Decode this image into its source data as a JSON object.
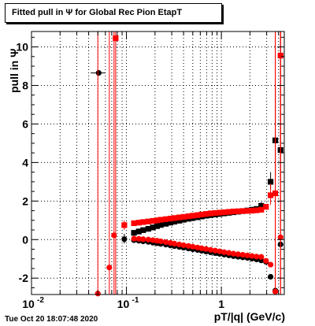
{
  "title": "Fitted pull in  Ψ  for Global Rec Pion EtapT",
  "timestamp": "Tue Oct 20 18:07:48 2020",
  "chart_data": {
    "type": "scatter",
    "title": "Fitted pull in  Ψ  for Global Rec Pion EtapT",
    "xlabel": "pT/|q| (GeV/c)",
    "ylabel": "pull in  Ψ",
    "x_scale": "log",
    "xlim": [
      0.01,
      4.6
    ],
    "ylim": [
      -2.85,
      10.8
    ],
    "grid": true,
    "x_ticks": [
      {
        "label": "10",
        "exp": "-2",
        "value": 0.01
      },
      {
        "label": "10",
        "exp": "-1",
        "value": 0.1
      },
      {
        "label": "1",
        "exp": "",
        "value": 1
      }
    ],
    "y_ticks": [
      -2,
      0,
      2,
      4,
      6,
      8,
      10
    ],
    "colors": {
      "series_a": "#000000",
      "series_b": "#ff0000"
    },
    "series": [
      {
        "marker": "circle",
        "color": "#000000",
        "points": [
          {
            "x": 0.051,
            "y": 8.65,
            "ylo": 8.65,
            "yhi": 8.65,
            "xlo": 0.042,
            "xhi": 0.06
          },
          {
            "x": 0.095,
            "y": 0.02,
            "ylo": -0.2,
            "yhi": 0.3
          },
          {
            "x": 0.12,
            "y": -0.03
          },
          {
            "x": 0.135,
            "y": -0.06
          },
          {
            "x": 0.15,
            "y": -0.09
          },
          {
            "x": 0.17,
            "y": -0.12
          },
          {
            "x": 0.19,
            "y": -0.16
          },
          {
            "x": 0.21,
            "y": -0.19
          },
          {
            "x": 0.23,
            "y": -0.22
          },
          {
            "x": 0.26,
            "y": -0.26
          },
          {
            "x": 0.29,
            "y": -0.3
          },
          {
            "x": 0.32,
            "y": -0.34
          },
          {
            "x": 0.36,
            "y": -0.38
          },
          {
            "x": 0.4,
            "y": -0.42
          },
          {
            "x": 0.45,
            "y": -0.46
          },
          {
            "x": 0.5,
            "y": -0.5
          },
          {
            "x": 0.56,
            "y": -0.54
          },
          {
            "x": 0.62,
            "y": -0.58
          },
          {
            "x": 0.69,
            "y": -0.62
          },
          {
            "x": 0.77,
            "y": -0.66
          },
          {
            "x": 0.86,
            "y": -0.7
          },
          {
            "x": 0.96,
            "y": -0.74
          },
          {
            "x": 1.07,
            "y": -0.78
          },
          {
            "x": 1.2,
            "y": -0.82
          },
          {
            "x": 1.34,
            "y": -0.86
          },
          {
            "x": 1.5,
            "y": -0.89
          },
          {
            "x": 1.68,
            "y": -0.92
          },
          {
            "x": 1.88,
            "y": -0.95
          },
          {
            "x": 2.1,
            "y": -0.99
          },
          {
            "x": 2.35,
            "y": -1.03
          },
          {
            "x": 2.63,
            "y": -1.08
          },
          {
            "x": 2.95,
            "y": -1.15
          },
          {
            "x": 3.3,
            "y": -1.93
          },
          {
            "x": 3.7,
            "y": -2.65
          },
          {
            "x": 4.2,
            "y": -0.25
          }
        ]
      },
      {
        "marker": "square",
        "color": "#000000",
        "points": [
          {
            "x": 0.12,
            "y": 0.35
          },
          {
            "x": 0.135,
            "y": 0.42
          },
          {
            "x": 0.15,
            "y": 0.49
          },
          {
            "x": 0.17,
            "y": 0.56
          },
          {
            "x": 0.19,
            "y": 0.63
          },
          {
            "x": 0.21,
            "y": 0.7
          },
          {
            "x": 0.23,
            "y": 0.76
          },
          {
            "x": 0.26,
            "y": 0.82
          },
          {
            "x": 0.29,
            "y": 0.88
          },
          {
            "x": 0.32,
            "y": 0.93
          },
          {
            "x": 0.36,
            "y": 0.98
          },
          {
            "x": 0.4,
            "y": 1.03
          },
          {
            "x": 0.45,
            "y": 1.08
          },
          {
            "x": 0.5,
            "y": 1.12
          },
          {
            "x": 0.56,
            "y": 1.16
          },
          {
            "x": 0.62,
            "y": 1.2
          },
          {
            "x": 0.69,
            "y": 1.24
          },
          {
            "x": 0.77,
            "y": 1.27
          },
          {
            "x": 0.86,
            "y": 1.3
          },
          {
            "x": 0.96,
            "y": 1.33
          },
          {
            "x": 1.07,
            "y": 1.36
          },
          {
            "x": 1.2,
            "y": 1.39
          },
          {
            "x": 1.34,
            "y": 1.42
          },
          {
            "x": 1.5,
            "y": 1.45
          },
          {
            "x": 1.68,
            "y": 1.48
          },
          {
            "x": 1.88,
            "y": 1.51
          },
          {
            "x": 2.1,
            "y": 1.55
          },
          {
            "x": 2.35,
            "y": 1.59
          },
          {
            "x": 2.63,
            "y": 1.75,
            "ylo": 1.55,
            "yhi": 1.95
          },
          {
            "x": 3.3,
            "y": 3.0,
            "ylo": 2.6,
            "yhi": 3.5
          },
          {
            "x": 3.7,
            "y": 5.15,
            "ylo": 3.3,
            "yhi": 8.0
          },
          {
            "x": 4.2,
            "y": 4.65,
            "ylo": 3.0,
            "yhi": 10.8
          }
        ]
      },
      {
        "marker": "circle",
        "color": "#ff0000",
        "points": [
          {
            "x": 0.05,
            "y": -2.8,
            "ylo": -2.85,
            "yhi": 10.8
          },
          {
            "x": 0.066,
            "y": -1.45,
            "ylo": -2.85,
            "yhi": 10.8
          },
          {
            "x": 0.074,
            "y": 0.22,
            "ylo": -2.85,
            "yhi": 10.8
          },
          {
            "x": 0.12,
            "y": 0.05
          },
          {
            "x": 0.135,
            "y": 0.04
          },
          {
            "x": 0.15,
            "y": 0.02
          },
          {
            "x": 0.17,
            "y": 0.0
          },
          {
            "x": 0.19,
            "y": -0.03
          },
          {
            "x": 0.21,
            "y": -0.06
          },
          {
            "x": 0.23,
            "y": -0.09
          },
          {
            "x": 0.26,
            "y": -0.13
          },
          {
            "x": 0.29,
            "y": -0.17
          },
          {
            "x": 0.32,
            "y": -0.21
          },
          {
            "x": 0.36,
            "y": -0.25
          },
          {
            "x": 0.4,
            "y": -0.29
          },
          {
            "x": 0.45,
            "y": -0.33
          },
          {
            "x": 0.5,
            "y": -0.37
          },
          {
            "x": 0.56,
            "y": -0.41
          },
          {
            "x": 0.62,
            "y": -0.45
          },
          {
            "x": 0.69,
            "y": -0.49
          },
          {
            "x": 0.77,
            "y": -0.53
          },
          {
            "x": 0.86,
            "y": -0.57
          },
          {
            "x": 0.96,
            "y": -0.61
          },
          {
            "x": 1.07,
            "y": -0.65
          },
          {
            "x": 1.2,
            "y": -0.69
          },
          {
            "x": 1.34,
            "y": -0.73
          },
          {
            "x": 1.5,
            "y": -0.76
          },
          {
            "x": 1.68,
            "y": -0.79
          },
          {
            "x": 1.88,
            "y": -0.82
          },
          {
            "x": 2.1,
            "y": -0.85
          },
          {
            "x": 2.35,
            "y": -0.88
          },
          {
            "x": 2.63,
            "y": -0.9
          },
          {
            "x": 2.95,
            "y": -1.1
          },
          {
            "x": 3.3,
            "y": -1.3
          },
          {
            "x": 3.7,
            "y": -2.7,
            "ylo": -2.85,
            "yhi": 10.8
          },
          {
            "x": 4.2,
            "y": 0.12,
            "ylo": -2.85,
            "yhi": 10.8
          }
        ]
      },
      {
        "marker": "square",
        "color": "#ff0000",
        "points": [
          {
            "x": 0.077,
            "y": 10.45,
            "ylo": -2.85,
            "yhi": 10.8
          },
          {
            "x": 0.095,
            "y": 0.75,
            "ylo": 0.5,
            "yhi": 1.0
          },
          {
            "x": 0.12,
            "y": 0.85
          },
          {
            "x": 0.135,
            "y": 0.88
          },
          {
            "x": 0.15,
            "y": 0.91
          },
          {
            "x": 0.17,
            "y": 0.94
          },
          {
            "x": 0.19,
            "y": 0.97
          },
          {
            "x": 0.21,
            "y": 1.0
          },
          {
            "x": 0.23,
            "y": 1.03
          },
          {
            "x": 0.26,
            "y": 1.06
          },
          {
            "x": 0.29,
            "y": 1.09
          },
          {
            "x": 0.32,
            "y": 1.12
          },
          {
            "x": 0.36,
            "y": 1.15
          },
          {
            "x": 0.4,
            "y": 1.18
          },
          {
            "x": 0.45,
            "y": 1.21
          },
          {
            "x": 0.5,
            "y": 1.24
          },
          {
            "x": 0.56,
            "y": 1.27
          },
          {
            "x": 0.62,
            "y": 1.3
          },
          {
            "x": 0.69,
            "y": 1.33
          },
          {
            "x": 0.77,
            "y": 1.36
          },
          {
            "x": 0.86,
            "y": 1.38
          },
          {
            "x": 0.96,
            "y": 1.4
          },
          {
            "x": 1.07,
            "y": 1.42
          },
          {
            "x": 1.2,
            "y": 1.44
          },
          {
            "x": 1.34,
            "y": 1.46
          },
          {
            "x": 1.5,
            "y": 1.47
          },
          {
            "x": 1.68,
            "y": 1.48
          },
          {
            "x": 1.88,
            "y": 1.49
          },
          {
            "x": 2.1,
            "y": 1.5
          },
          {
            "x": 2.35,
            "y": 1.52
          },
          {
            "x": 2.63,
            "y": 1.55
          },
          {
            "x": 2.95,
            "y": 1.7
          },
          {
            "x": 3.3,
            "y": 2.3,
            "ylo": 1.8,
            "yhi": 2.9
          },
          {
            "x": 3.7,
            "y": 2.4,
            "ylo": -2.85,
            "yhi": 10.8
          },
          {
            "x": 4.2,
            "y": 9.55,
            "ylo": -2.85,
            "yhi": 10.8
          }
        ]
      }
    ]
  }
}
